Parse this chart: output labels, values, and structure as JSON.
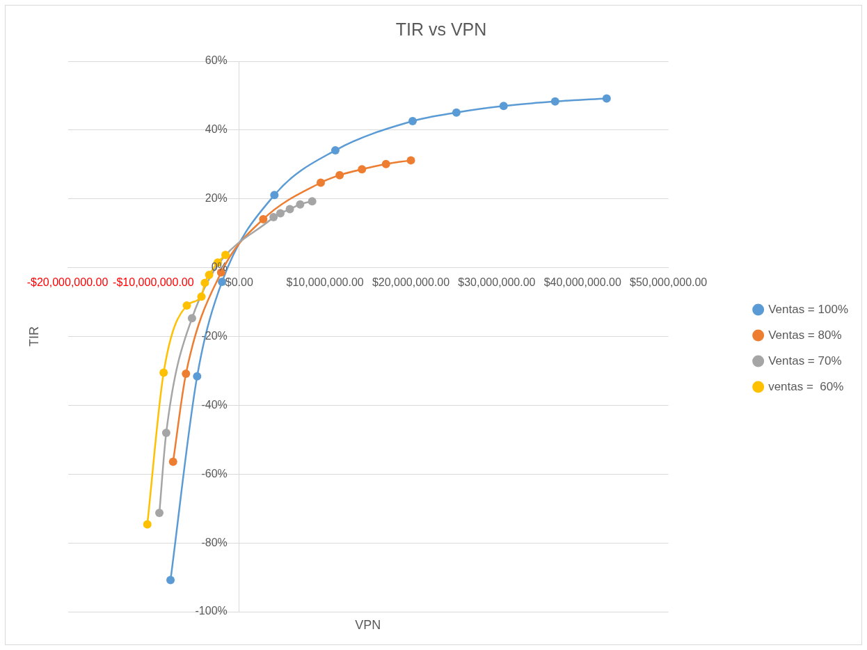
{
  "chart_data": {
    "type": "line",
    "title": "TIR vs VPN",
    "xlabel": "VPN",
    "ylabel": "TIR",
    "xlim": [
      -20000000,
      50000000
    ],
    "ylim": [
      -100,
      60
    ],
    "xticks": [
      {
        "value": -20000000,
        "label": "-$20,000,000.00"
      },
      {
        "value": -10000000,
        "label": "-$10,000,000.00"
      },
      {
        "value": 0,
        "label": "$0.00"
      },
      {
        "value": 10000000,
        "label": "$10,000,000.00"
      },
      {
        "value": 20000000,
        "label": "$20,000,000.00"
      },
      {
        "value": 30000000,
        "label": "$30,000,000.00"
      },
      {
        "value": 40000000,
        "label": "$40,000,000.00"
      },
      {
        "value": 50000000,
        "label": "$50,000,000.00"
      }
    ],
    "yticks": [
      {
        "value": -100,
        "label": "-100%"
      },
      {
        "value": -80,
        "label": "-80%"
      },
      {
        "value": -60,
        "label": "-60%"
      },
      {
        "value": -40,
        "label": "-40%"
      },
      {
        "value": -20,
        "label": "-20%"
      },
      {
        "value": 0,
        "label": "0%"
      },
      {
        "value": 20,
        "label": "20%"
      },
      {
        "value": 40,
        "label": "40%"
      },
      {
        "value": 60,
        "label": "60%"
      }
    ],
    "grid": "y",
    "legend": "right",
    "marker": "circle",
    "line_style": "solid",
    "series": [
      {
        "name": "Ventas = 100%",
        "color": "#5b9bd5",
        "x": [
          -8000000,
          -4900000,
          -2000000,
          4100000,
          11200000,
          20200000,
          25300000,
          30800000,
          36800000,
          42800000
        ],
        "values": [
          -90.8,
          -31.6,
          -4.1,
          21.1,
          34.1,
          42.6,
          45.1,
          47.0,
          48.3,
          49.2
        ]
      },
      {
        "name": "Ventas = 80%",
        "color": "#ed7d31",
        "x": [
          -7700000,
          -6200000,
          -2100000,
          2800000,
          9500000,
          11700000,
          14300000,
          17100000,
          20000000
        ],
        "values": [
          -56.4,
          -30.8,
          -1.4,
          14.1,
          24.7,
          26.9,
          28.6,
          30.1,
          31.2
        ]
      },
      {
        "name": "Ventas = 70%",
        "color": "#a5a5a5",
        "x": [
          -9300000,
          -8500000,
          -5500000,
          4000000,
          4800000,
          5900000,
          7100000,
          8500000
        ],
        "values": [
          -71.3,
          -48.0,
          -14.7,
          14.7,
          15.8,
          17.0,
          18.4,
          19.3
        ]
      },
      {
        "name": "ventas =  60%",
        "color": "#ffc000",
        "x": [
          -10700000,
          -8800000,
          -6100000,
          -4400000,
          -4000000,
          -3500000,
          -2500000,
          -1600000
        ],
        "values": [
          -74.6,
          -30.5,
          -11.0,
          -8.4,
          -4.4,
          -2.1,
          1.5,
          3.7
        ]
      }
    ]
  }
}
